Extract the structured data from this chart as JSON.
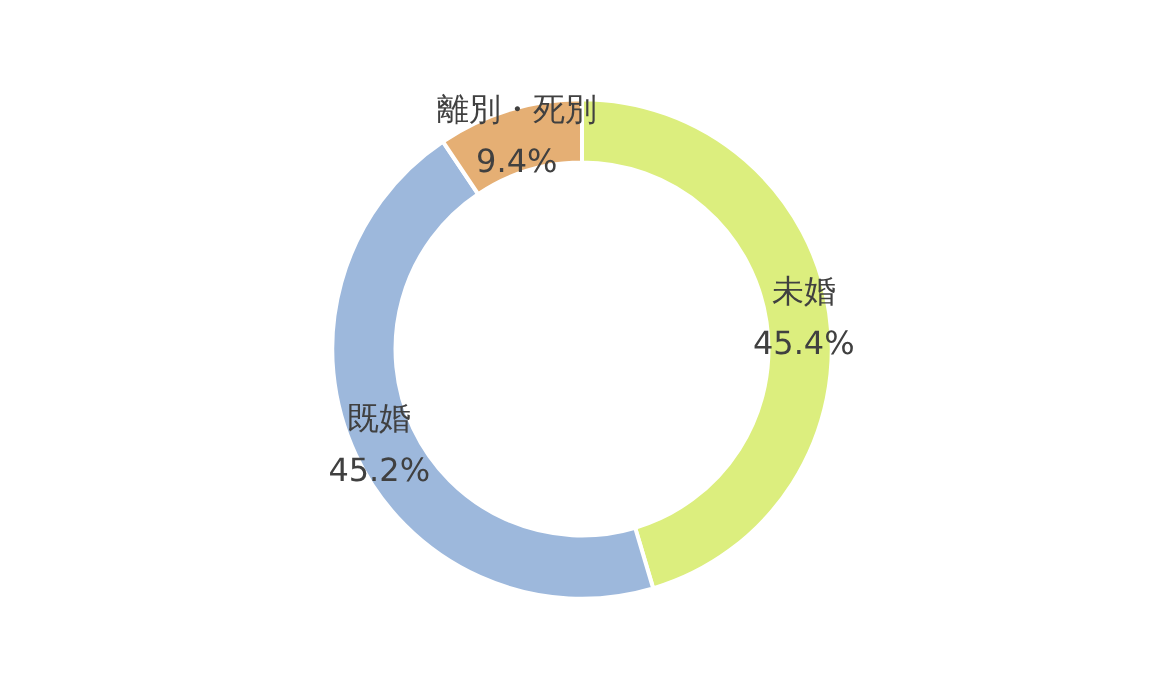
{
  "chart_data": {
    "type": "donut",
    "categories": [
      "未婚",
      "既婚",
      "離別・死別"
    ],
    "values": [
      45.4,
      45.2,
      9.4
    ],
    "colors": [
      "#dcee7e",
      "#9db8dc",
      "#e5af74"
    ],
    "value_labels": [
      "45.4%",
      "45.2%",
      "9.4%"
    ],
    "legend": false
  }
}
